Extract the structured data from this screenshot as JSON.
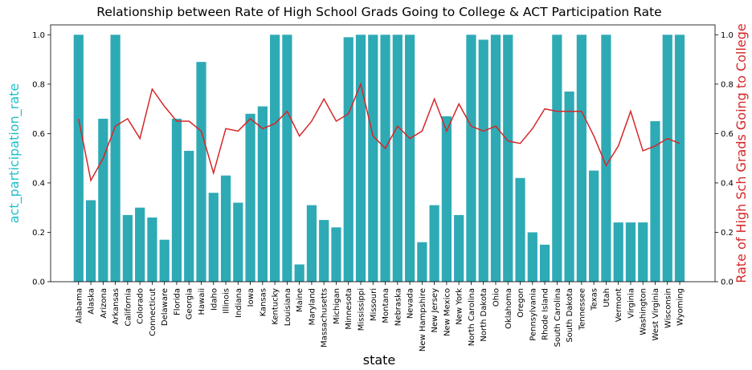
{
  "chart_data": {
    "type": "bar+line",
    "title": "Relationship between Rate of High School Grads Going to College & ACT Participation Rate",
    "xlabel": "state",
    "ylabel_left": "act_participation_rate",
    "ylabel_right": "Rate of High Sch Grads Going to College",
    "ylim_left": [
      0,
      1.04
    ],
    "ylim_right": [
      0,
      1.04
    ],
    "yticks": [
      "0.0",
      "0.2",
      "0.4",
      "0.6",
      "0.8",
      "1.0"
    ],
    "grid": false,
    "bar_color": "#2eaab5",
    "line_color": "#d62728",
    "left_label_color": "#1fc0cc",
    "right_label_color": "#d62728",
    "categories": [
      "Alabama",
      "Alaska",
      "Arizona",
      "Arkansas",
      "California",
      "Colorado",
      "Connecticut",
      "Delaware",
      "Florida",
      "Georgia",
      "Hawaii",
      "Idaho",
      "Illinois",
      "Indiana",
      "Iowa",
      "Kansas",
      "Kentucky",
      "Louisiana",
      "Maine",
      "Maryland",
      "Massachusetts",
      "Michigan",
      "Minnesota",
      "Mississippi",
      "Missouri",
      "Montana",
      "Nebraska",
      "Nevada",
      "New Hampshire",
      "New Jersey",
      "New Mexico",
      "New York",
      "North Carolina",
      "North Dakota",
      "Ohio",
      "Oklahoma",
      "Oregon",
      "Pennsylvania",
      "Rhode Island",
      "South Carolina",
      "South Dakota",
      "Tennessee",
      "Texas",
      "Utah",
      "Vermont",
      "Virginia",
      "Washington",
      "West Virginia",
      "Wisconsin",
      "Wyoming"
    ],
    "series": [
      {
        "type": "bar",
        "values": [
          1.0,
          0.33,
          0.66,
          1.0,
          0.27,
          0.3,
          0.26,
          0.17,
          0.66,
          0.53,
          0.89,
          0.36,
          0.43,
          0.32,
          0.68,
          0.71,
          1.0,
          1.0,
          0.07,
          0.31,
          0.25,
          0.22,
          0.99,
          1.0,
          1.0,
          1.0,
          1.0,
          1.0,
          0.16,
          0.31,
          0.67,
          0.27,
          1.0,
          0.98,
          1.0,
          1.0,
          0.42,
          0.2,
          0.15,
          1.0,
          0.77,
          1.0,
          0.45,
          1.0,
          0.24,
          0.24,
          0.24,
          0.65,
          1.0,
          1.0
        ]
      },
      {
        "type": "line",
        "values": [
          0.66,
          0.41,
          0.5,
          0.63,
          0.66,
          0.58,
          0.78,
          0.71,
          0.65,
          0.65,
          0.61,
          0.44,
          0.62,
          0.61,
          0.66,
          0.62,
          0.64,
          0.69,
          0.59,
          0.65,
          0.74,
          0.65,
          0.68,
          0.8,
          0.59,
          0.54,
          0.63,
          0.58,
          0.61,
          0.74,
          0.61,
          0.72,
          0.63,
          0.61,
          0.63,
          0.57,
          0.56,
          0.62,
          0.7,
          0.69,
          0.69,
          0.69,
          0.59,
          0.47,
          0.55,
          0.69,
          0.53,
          0.55,
          0.58,
          0.56
        ]
      }
    ]
  }
}
